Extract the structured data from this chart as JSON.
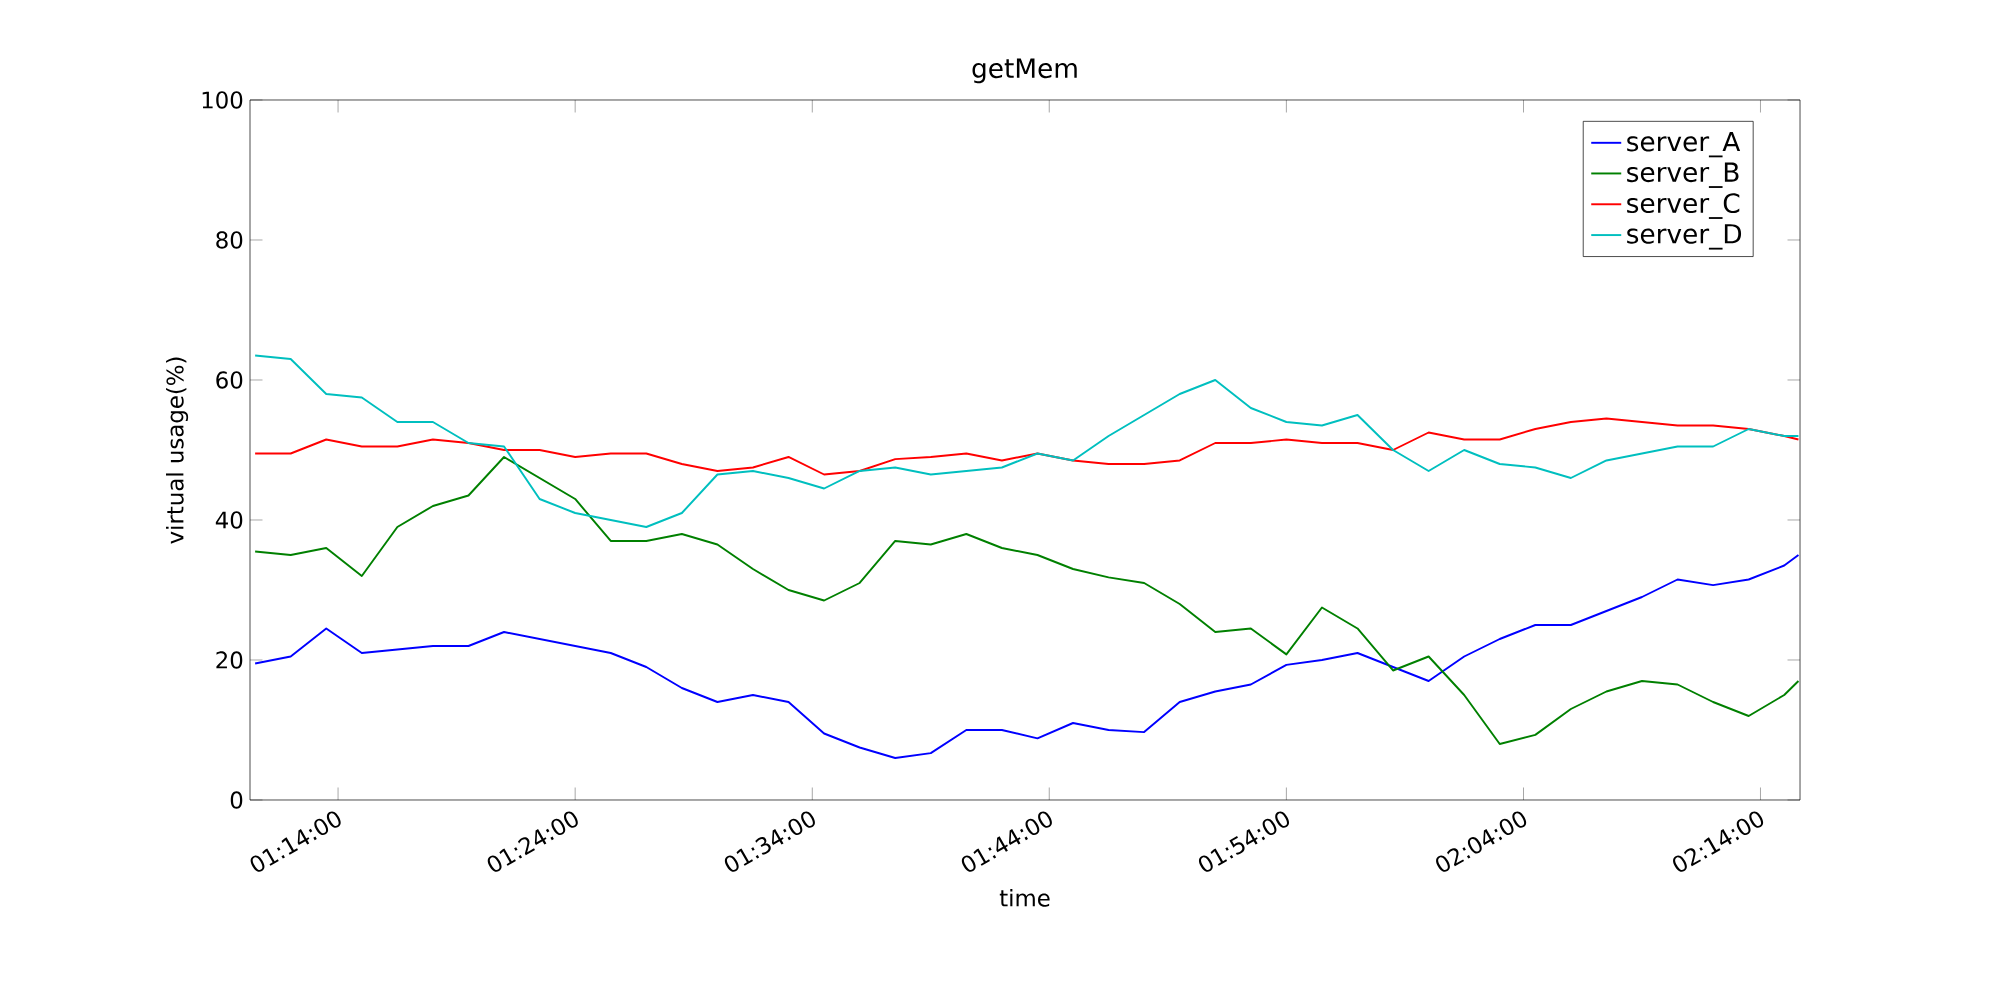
{
  "chart_data": {
    "type": "line",
    "title": "getMem",
    "xlabel": "time",
    "ylabel": "virtual usage(%)",
    "x": [
      1.175,
      1.2,
      1.225,
      1.25,
      1.275,
      1.3,
      1.325,
      1.35,
      1.375,
      1.4,
      1.425,
      1.45,
      1.475,
      1.5,
      1.525,
      1.55,
      1.575,
      1.6,
      1.625,
      1.65,
      1.675,
      1.7,
      1.725,
      1.75,
      1.775,
      1.8,
      1.825,
      1.85,
      1.875,
      1.9,
      1.925,
      1.95,
      1.975,
      2.0,
      2.025,
      2.05,
      2.075,
      2.1,
      2.125,
      2.15,
      2.175,
      2.2,
      2.225,
      2.25,
      2.26
    ],
    "series": [
      {
        "name": "server_A",
        "color": "#0000ff",
        "values": [
          19.5,
          20.5,
          24.5,
          21,
          21.5,
          22,
          22,
          24,
          23,
          22,
          21,
          19,
          16,
          14,
          15,
          14,
          9.5,
          7.5,
          6,
          6.7,
          10,
          10,
          8.8,
          11,
          10,
          9.7,
          14,
          15.5,
          16.5,
          19.3,
          20,
          21,
          19,
          17,
          20.5,
          23,
          25,
          25,
          27,
          29,
          31.5,
          30.7,
          31.5,
          33.5,
          35
        ]
      },
      {
        "name": "server_B",
        "color": "#008000",
        "values": [
          35.5,
          35,
          36,
          32,
          39,
          42,
          43.5,
          49,
          46,
          43,
          37,
          37,
          38,
          36.5,
          33,
          30,
          28.5,
          31,
          37,
          36.5,
          38,
          36,
          35,
          33,
          31.8,
          31,
          28,
          24,
          24.5,
          20.8,
          27.5,
          24.5,
          18.5,
          20.5,
          15,
          8,
          9.3,
          13,
          15.5,
          17,
          16.5,
          14,
          12,
          15,
          17
        ]
      },
      {
        "name": "server_C",
        "color": "#ff0000",
        "values": [
          49.5,
          49.5,
          51.5,
          50.5,
          50.5,
          51.5,
          51,
          50,
          50,
          49,
          49.5,
          49.5,
          48,
          47,
          47.5,
          49,
          46.5,
          47,
          48.7,
          49,
          49.5,
          48.5,
          49.5,
          48.5,
          48,
          48,
          48.5,
          51,
          51,
          51.5,
          51,
          51,
          50,
          52.5,
          51.5,
          51.5,
          53,
          54,
          54.5,
          54,
          53.5,
          53.5,
          53,
          52,
          51.5
        ]
      },
      {
        "name": "server_D",
        "color": "#00bfbf",
        "values": [
          63.5,
          63,
          58,
          57.5,
          54,
          54,
          51,
          50.5,
          43,
          41,
          40,
          39,
          41,
          46.5,
          47,
          46,
          44.5,
          47,
          47.5,
          46.5,
          47,
          47.5,
          49.5,
          48.5,
          52,
          55,
          58,
          60,
          56,
          54,
          53.5,
          55,
          50,
          47,
          50,
          48,
          47.5,
          46,
          48.5,
          49.5,
          50.5,
          50.5,
          53,
          52,
          52
        ]
      }
    ],
    "xlim": [
      1.1714,
      2.2611
    ],
    "xticks": [
      {
        "value": 1.2333,
        "label": "01:14:00"
      },
      {
        "value": 1.4,
        "label": "01:24:00"
      },
      {
        "value": 1.5667,
        "label": "01:34:00"
      },
      {
        "value": 1.7333,
        "label": "01:44:00"
      },
      {
        "value": 1.9,
        "label": "01:54:00"
      },
      {
        "value": 2.0667,
        "label": "02:04:00"
      },
      {
        "value": 2.2333,
        "label": "02:14:00"
      }
    ],
    "ylim": [
      0,
      100
    ],
    "yticks": [
      0,
      20,
      40,
      60,
      80,
      100
    ],
    "legend": "top right",
    "line_style": "solid"
  }
}
